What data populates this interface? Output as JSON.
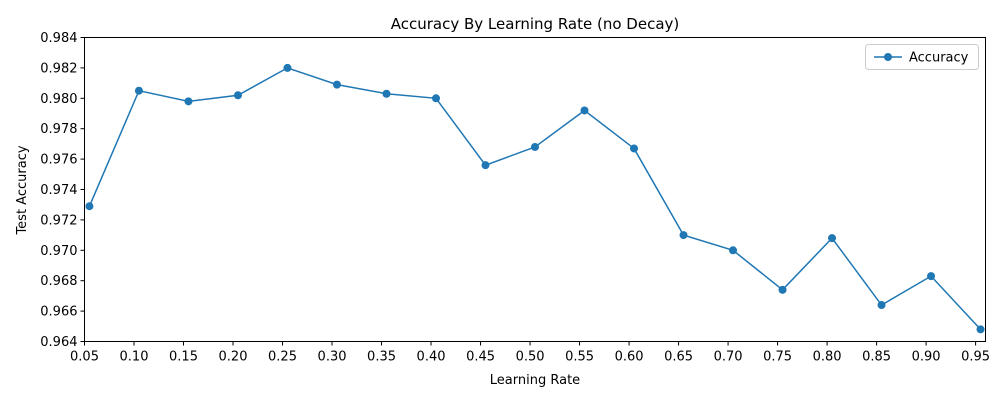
{
  "chart_data": {
    "type": "line",
    "title": "Accuracy By Learning Rate (no Decay)",
    "xlabel": "Learning Rate",
    "ylabel": "Test Accuracy",
    "xlim": [
      0.05,
      0.96
    ],
    "ylim": [
      0.964,
      0.984
    ],
    "xticks": [
      0.05,
      0.1,
      0.15,
      0.2,
      0.25,
      0.3,
      0.35,
      0.4,
      0.45,
      0.5,
      0.55,
      0.6,
      0.65,
      0.7,
      0.75,
      0.8,
      0.85,
      0.9,
      0.95
    ],
    "xtick_labels": [
      "0.05",
      "0.10",
      "0.15",
      "0.20",
      "0.25",
      "0.30",
      "0.35",
      "0.40",
      "0.45",
      "0.50",
      "0.55",
      "0.60",
      "0.65",
      "0.70",
      "0.75",
      "0.80",
      "0.85",
      "0.90",
      "0.95"
    ],
    "yticks": [
      0.964,
      0.966,
      0.968,
      0.97,
      0.972,
      0.974,
      0.976,
      0.978,
      0.98,
      0.982,
      0.984
    ],
    "ytick_labels": [
      "0.964",
      "0.966",
      "0.968",
      "0.970",
      "0.972",
      "0.974",
      "0.976",
      "0.978",
      "0.980",
      "0.982",
      "0.984"
    ],
    "grid": false,
    "legend_position": "top-right",
    "series": [
      {
        "name": "Accuracy",
        "color": "#1f77b4",
        "marker": "circle",
        "x": [
          0.055,
          0.105,
          0.155,
          0.205,
          0.255,
          0.305,
          0.355,
          0.405,
          0.455,
          0.505,
          0.555,
          0.605,
          0.655,
          0.705,
          0.755,
          0.805,
          0.855,
          0.905,
          0.955
        ],
        "y": [
          0.9729,
          0.9805,
          0.9798,
          0.9802,
          0.982,
          0.9809,
          0.9803,
          0.98,
          0.9756,
          0.9768,
          0.9792,
          0.9767,
          0.971,
          0.97,
          0.9674,
          0.9708,
          0.9664,
          0.9683,
          0.9648
        ]
      }
    ]
  }
}
